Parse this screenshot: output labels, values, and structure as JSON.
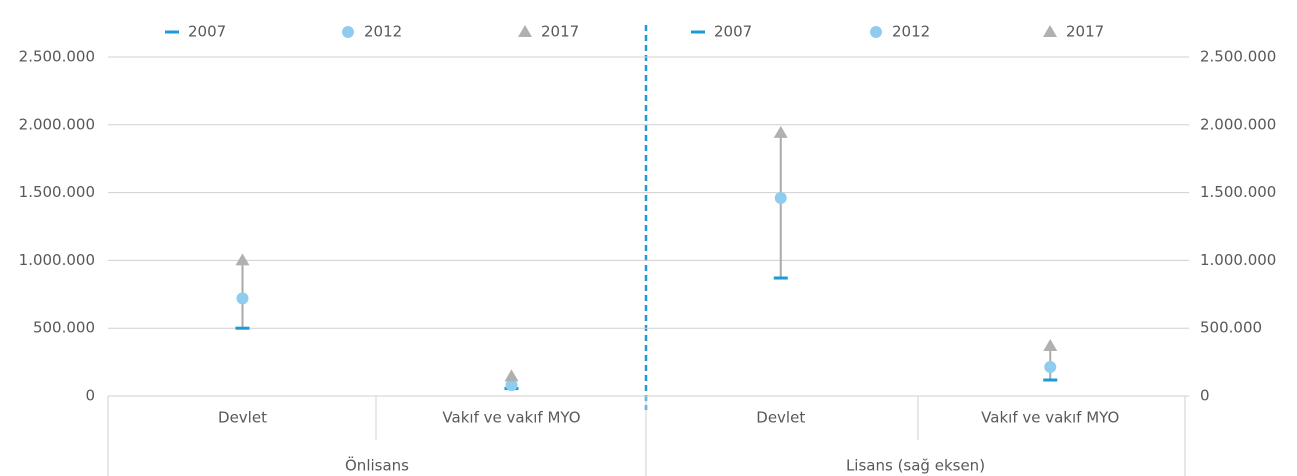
{
  "chart_data": {
    "type": "dot",
    "groups": [
      {
        "label": "Önlisans",
        "axis": "y",
        "categories": [
          "Devlet",
          "Vakıf ve vakıf MYO"
        ]
      },
      {
        "label": "Lisans (sağ eksen)",
        "axis": "y2",
        "categories": [
          "Devlet",
          "Vakıf ve vakıf MYO"
        ]
      }
    ],
    "series": [
      {
        "name": "2007",
        "color": "#1a9bd7",
        "marker": "dash",
        "group": 0,
        "values": [
          500000,
          55000
        ]
      },
      {
        "name": "2012",
        "color": "#8fcdf0",
        "marker": "circle",
        "group": 0,
        "values": [
          720000,
          80000
        ]
      },
      {
        "name": "2017",
        "color": "#b0b0b0",
        "marker": "triangle",
        "group": 0,
        "values": [
          1000000,
          145000
        ]
      },
      {
        "name": "2007",
        "color": "#1a9bd7",
        "marker": "dash",
        "group": 1,
        "axis": "y2",
        "values": [
          870000,
          118000
        ]
      },
      {
        "name": "2012",
        "color": "#8fcdf0",
        "marker": "circle",
        "group": 1,
        "axis": "y2",
        "values": [
          1460000,
          214000
        ]
      },
      {
        "name": "2017",
        "color": "#b0b0b0",
        "marker": "triangle",
        "group": 1,
        "axis": "y2",
        "values": [
          1940000,
          369000
        ]
      }
    ],
    "ylim": [
      0,
      2500000
    ],
    "yticks": [
      0,
      {
        "value": 500000,
        "label": "500.000"
      },
      {
        "value": 1000000,
        "label": "1.000.000"
      },
      {
        "value": 1500000,
        "label": "1.500.000"
      },
      {
        "value": 2000000,
        "label": "2.000.000"
      },
      {
        "value": 2500000,
        "label": "2.500.000"
      }
    ],
    "y2lim": [
      0,
      2500000
    ],
    "y2ticks": [
      0,
      {
        "value": 500000,
        "label": "500.000"
      },
      {
        "value": 1000000,
        "label": "1.000.000"
      },
      {
        "value": 1500000,
        "label": "1.500.000"
      },
      {
        "value": 2000000,
        "label": "2.000.000"
      },
      {
        "value": 2500000,
        "label": "2.500.000"
      }
    ],
    "grid": true
  }
}
